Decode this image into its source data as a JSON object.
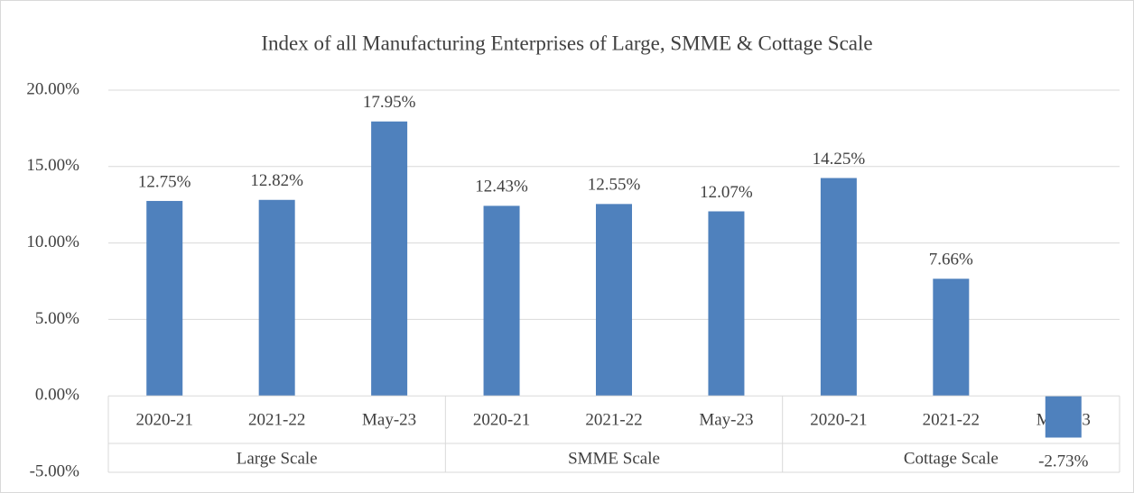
{
  "chart_data": {
    "type": "bar",
    "title": "Index of all Manufacturing Enterprises of Large, SMME & Cottage Scale",
    "groups": [
      {
        "name": "Large Scale",
        "categories": [
          "2020-21",
          "2021-22",
          "May-23"
        ],
        "values": [
          12.75,
          12.82,
          17.95
        ],
        "value_labels": [
          "12.75%",
          "12.82%",
          "17.95%"
        ]
      },
      {
        "name": "SMME Scale",
        "categories": [
          "2020-21",
          "2021-22",
          "May-23"
        ],
        "values": [
          12.43,
          12.55,
          12.07
        ],
        "value_labels": [
          "12.43%",
          "12.55%",
          "12.07%"
        ]
      },
      {
        "name": "Cottage Scale",
        "categories": [
          "2020-21",
          "2021-22",
          "May-23"
        ],
        "values": [
          14.25,
          7.66,
          -2.73
        ],
        "value_labels": [
          "14.25%",
          "7.66%",
          "-2.73%"
        ]
      }
    ],
    "color": "#4f81bd",
    "ylim": [
      -5,
      20
    ],
    "yticks": [
      {
        "value": -5,
        "label": "-5.00%"
      },
      {
        "value": 0,
        "label": "0.00%"
      },
      {
        "value": 5,
        "label": "5.00%"
      },
      {
        "value": 10,
        "label": "10.00%"
      },
      {
        "value": 15,
        "label": "15.00%"
      },
      {
        "value": 20,
        "label": "20.00%"
      }
    ],
    "grid": true
  }
}
